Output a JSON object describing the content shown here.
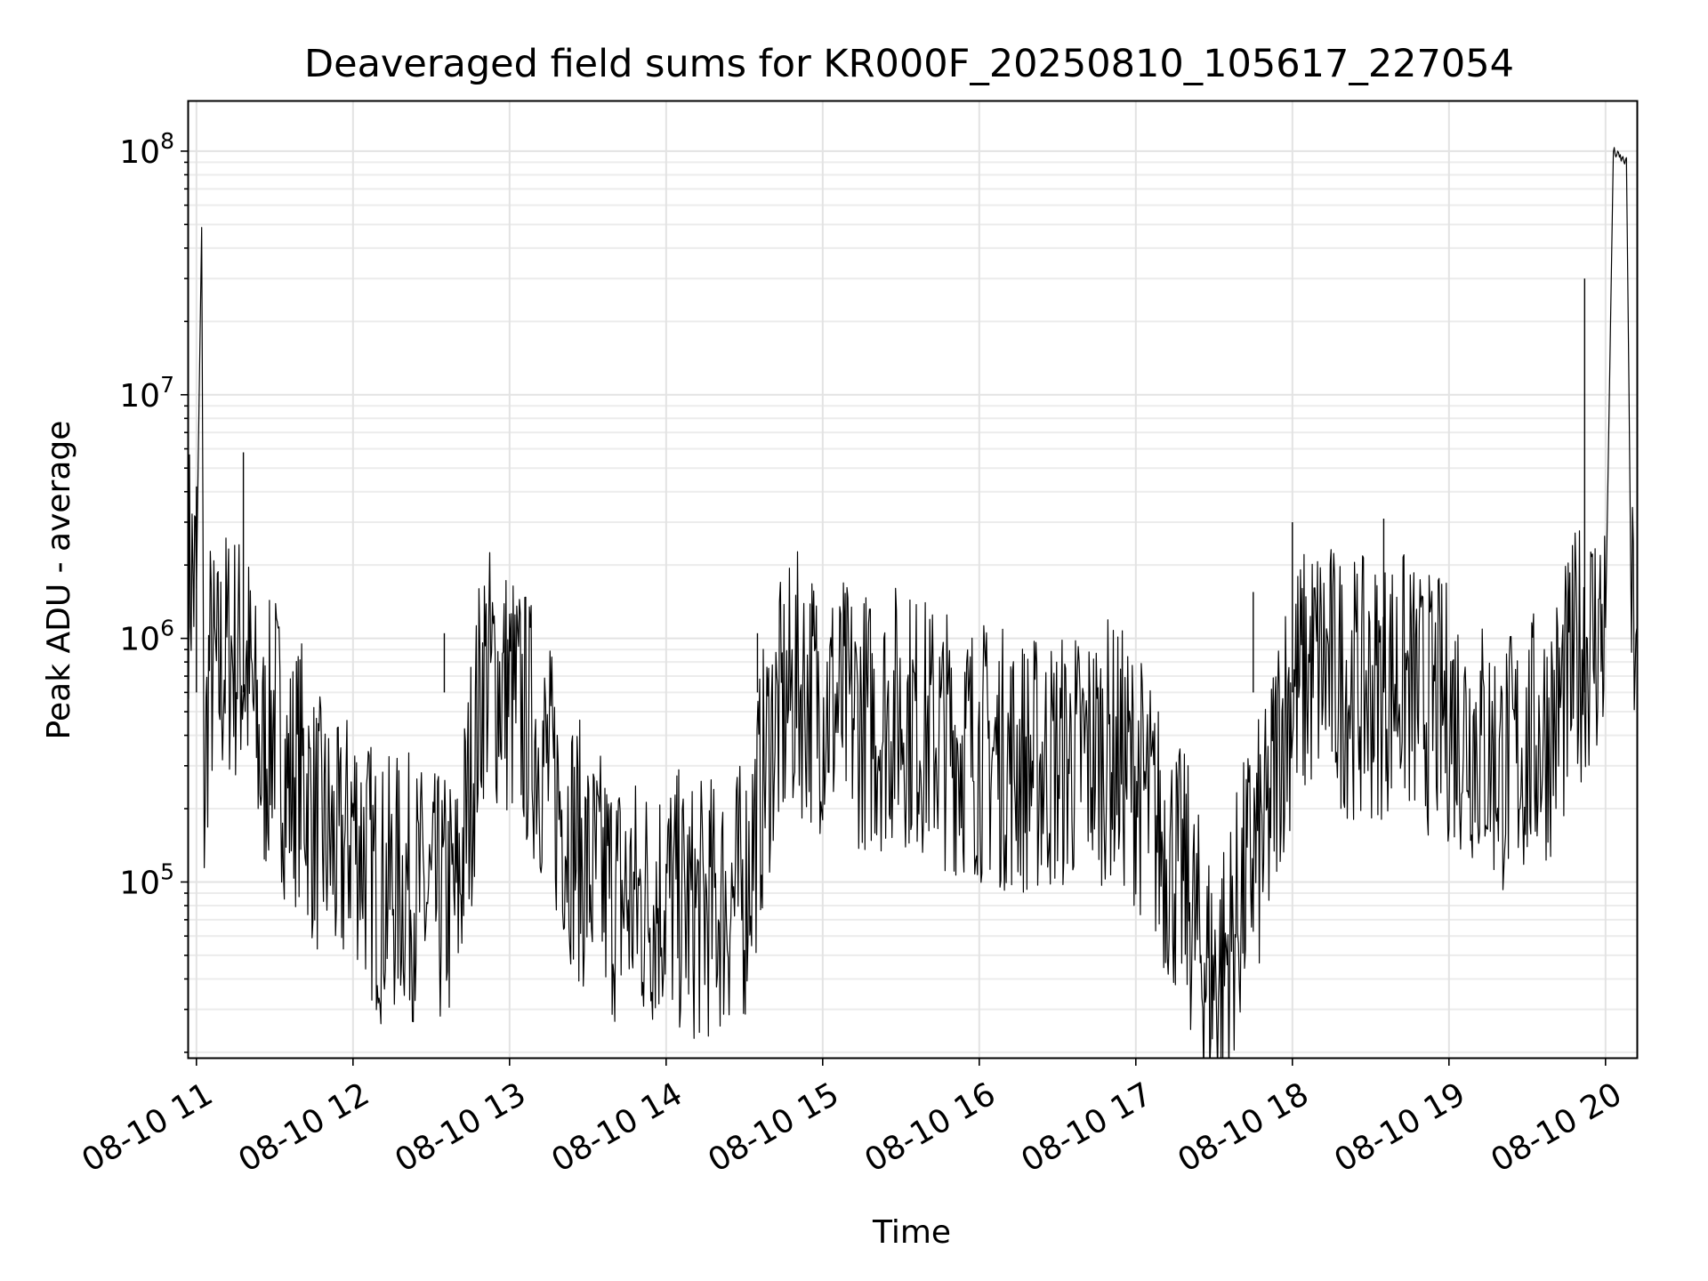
{
  "chart_data": {
    "type": "line",
    "title": "Deaveraged field sums for KR000F_20250810_105617_227054",
    "xlabel": "Time",
    "ylabel": "Peak ADU - average",
    "yscale": "log",
    "ylim": [
      19000,
      160000000
    ],
    "xlim": [
      "2025-08-10 10:57",
      "2025-08-10 20:12"
    ],
    "grid": true,
    "line_color": "#000000",
    "x_ticks": [
      {
        "value": "2025-08-10 11:00",
        "label": "08-10 11"
      },
      {
        "value": "2025-08-10 12:00",
        "label": "08-10 12"
      },
      {
        "value": "2025-08-10 13:00",
        "label": "08-10 13"
      },
      {
        "value": "2025-08-10 14:00",
        "label": "08-10 14"
      },
      {
        "value": "2025-08-10 15:00",
        "label": "08-10 15"
      },
      {
        "value": "2025-08-10 16:00",
        "label": "08-10 16"
      },
      {
        "value": "2025-08-10 17:00",
        "label": "08-10 17"
      },
      {
        "value": "2025-08-10 18:00",
        "label": "08-10 18"
      },
      {
        "value": "2025-08-10 19:00",
        "label": "08-10 19"
      },
      {
        "value": "2025-08-10 20:00",
        "label": "08-10 20"
      }
    ],
    "y_ticks": [
      {
        "value": 100000,
        "base": "10",
        "exp": "5"
      },
      {
        "value": 1000000,
        "base": "10",
        "exp": "6"
      },
      {
        "value": 10000000,
        "base": "10",
        "exp": "7"
      },
      {
        "value": 100000000,
        "base": "10",
        "exp": "8"
      }
    ],
    "series": [
      {
        "x": [
          "2025-08-10 10:57",
          "2025-08-10 11:00",
          "2025-08-10 11:02",
          "2025-08-10 11:03",
          "2025-08-10 11:05",
          "2025-08-10 11:08",
          "2025-08-10 11:12",
          "2025-08-10 11:15",
          "2025-08-10 11:18",
          "2025-08-10 11:20",
          "2025-08-10 11:25",
          "2025-08-10 11:30",
          "2025-08-10 11:35",
          "2025-08-10 11:40",
          "2025-08-10 11:45",
          "2025-08-10 11:50",
          "2025-08-10 11:55",
          "2025-08-10 12:00",
          "2025-08-10 12:10",
          "2025-08-10 12:20",
          "2025-08-10 12:30",
          "2025-08-10 12:40",
          "2025-08-10 12:50",
          "2025-08-10 13:00",
          "2025-08-10 13:10",
          "2025-08-10 13:20",
          "2025-08-10 13:30",
          "2025-08-10 13:40",
          "2025-08-10 13:50",
          "2025-08-10 14:00",
          "2025-08-10 14:10",
          "2025-08-10 14:20",
          "2025-08-10 14:30",
          "2025-08-10 14:40",
          "2025-08-10 14:50",
          "2025-08-10 15:00",
          "2025-08-10 15:10",
          "2025-08-10 15:20",
          "2025-08-10 15:30",
          "2025-08-10 15:40",
          "2025-08-10 15:50",
          "2025-08-10 16:00",
          "2025-08-10 16:10",
          "2025-08-10 16:20",
          "2025-08-10 16:30",
          "2025-08-10 16:40",
          "2025-08-10 16:50",
          "2025-08-10 17:00",
          "2025-08-10 17:10",
          "2025-08-10 17:20",
          "2025-08-10 17:25",
          "2025-08-10 17:30",
          "2025-08-10 17:35",
          "2025-08-10 17:40",
          "2025-08-10 17:45",
          "2025-08-10 17:50",
          "2025-08-10 17:55",
          "2025-08-10 18:00",
          "2025-08-10 18:10",
          "2025-08-10 18:20",
          "2025-08-10 18:30",
          "2025-08-10 18:40",
          "2025-08-10 18:50",
          "2025-08-10 19:00",
          "2025-08-10 19:10",
          "2025-08-10 19:20",
          "2025-08-10 19:30",
          "2025-08-10 19:40",
          "2025-08-10 19:45",
          "2025-08-10 19:50",
          "2025-08-10 19:55",
          "2025-08-10 20:00",
          "2025-08-10 20:03",
          "2025-08-10 20:05",
          "2025-08-10 20:08",
          "2025-08-10 20:10",
          "2025-08-10 20:12"
        ],
        "y": [
          2000000,
          1600000,
          48000000,
          220000,
          800000,
          650000,
          900000,
          850000,
          800000,
          700000,
          300000,
          500000,
          250000,
          300000,
          180000,
          150000,
          120000,
          180000,
          90000,
          100000,
          80000,
          85000,
          750000,
          600000,
          400000,
          200000,
          110000,
          90000,
          80000,
          90000,
          75000,
          80000,
          90000,
          400000,
          650000,
          550000,
          500000,
          450000,
          500000,
          420000,
          380000,
          350000,
          320000,
          300000,
          310000,
          330000,
          350000,
          280000,
          150000,
          90000,
          50000,
          40000,
          50000,
          80000,
          130000,
          150000,
          400000,
          600000,
          800000,
          650000,
          600000,
          700000,
          550000,
          500000,
          400000,
          300000,
          350000,
          450000,
          600000,
          900000,
          1000000,
          1100000,
          100000000,
          95000000,
          90000000,
          1200000,
          1100000
        ],
        "spikes": [
          {
            "x": "2025-08-10 11:00",
            "y": 4200000
          },
          {
            "x": "2025-08-10 11:18",
            "y": 5800000
          },
          {
            "x": "2025-08-10 12:35",
            "y": 1050000
          },
          {
            "x": "2025-08-10 14:35",
            "y": 1050000
          },
          {
            "x": "2025-08-10 17:45",
            "y": 1550000
          },
          {
            "x": "2025-08-10 18:00",
            "y": 3000000
          },
          {
            "x": "2025-08-10 18:35",
            "y": 3100000
          },
          {
            "x": "2025-08-10 19:52",
            "y": 30000000
          }
        ]
      }
    ]
  }
}
